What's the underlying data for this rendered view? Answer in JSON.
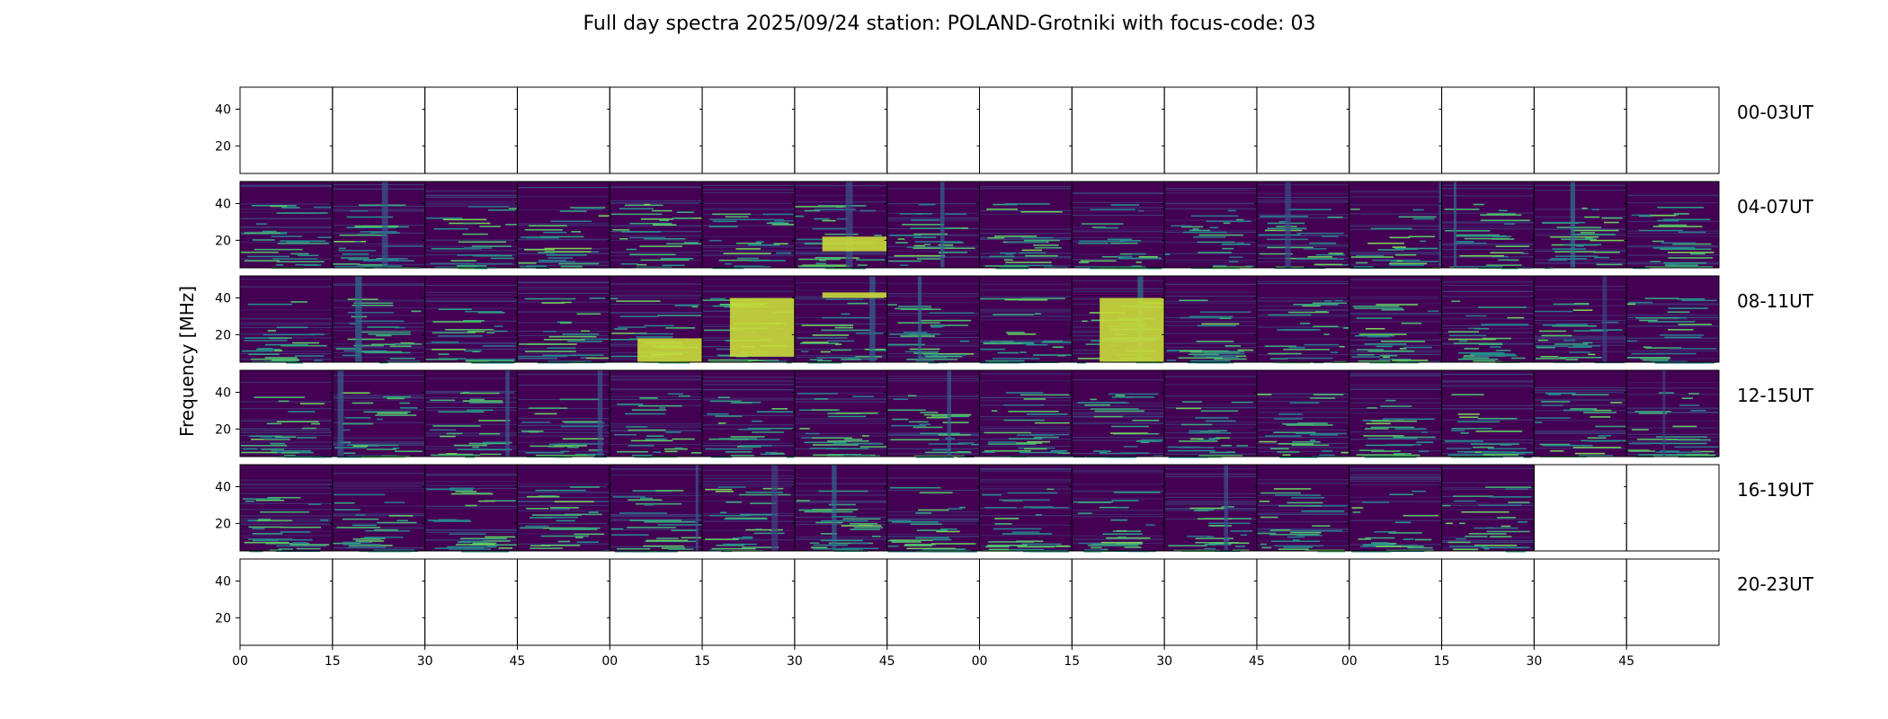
{
  "chart_data": {
    "type": "heatmap",
    "title": "Full day spectra 2025/09/24 station: POLAND-Grotniki with focus-code: 03",
    "ylabel": "Frequency [MHz]",
    "xlabel": "",
    "colormap": "viridis",
    "colors": {
      "low": "#440154",
      "mid": "#21918c",
      "high": "#fde725",
      "frame": "#000000"
    },
    "y_range": [
      5,
      52
    ],
    "y_ticks": [
      "20",
      "40"
    ],
    "y_tick_values": [
      20,
      40
    ],
    "x_ticks": [
      "00",
      "15",
      "30",
      "45",
      "00",
      "15",
      "30",
      "45",
      "00",
      "15",
      "30",
      "45",
      "00",
      "15",
      "30",
      "45"
    ],
    "x_tick_minutes": [
      0,
      15,
      30,
      45,
      60,
      75,
      90,
      105,
      120,
      135,
      150,
      165,
      180,
      195,
      210,
      225
    ],
    "segment_minutes": 15,
    "rows": [
      {
        "label": "00-03UT",
        "data_segments": 0
      },
      {
        "label": "04-07UT",
        "data_segments": 16
      },
      {
        "label": "08-11UT",
        "data_segments": 16
      },
      {
        "label": "12-15UT",
        "data_segments": 16
      },
      {
        "label": "16-19UT",
        "data_segments": 14
      },
      {
        "label": "20-23UT",
        "data_segments": 0
      }
    ],
    "bright_bursts": [
      {
        "row": "08-11UT",
        "segment": 5,
        "freq_range": [
          8,
          40
        ]
      },
      {
        "row": "08-11UT",
        "segment": 9,
        "freq_range": [
          5,
          40
        ]
      },
      {
        "row": "08-11UT",
        "segment": 6,
        "freq_range": [
          40,
          43
        ]
      },
      {
        "row": "08-11UT",
        "segment": 4,
        "freq_range": [
          5,
          18
        ]
      },
      {
        "row": "04-07UT",
        "segment": 6,
        "freq_range": [
          14,
          22
        ]
      }
    ]
  }
}
